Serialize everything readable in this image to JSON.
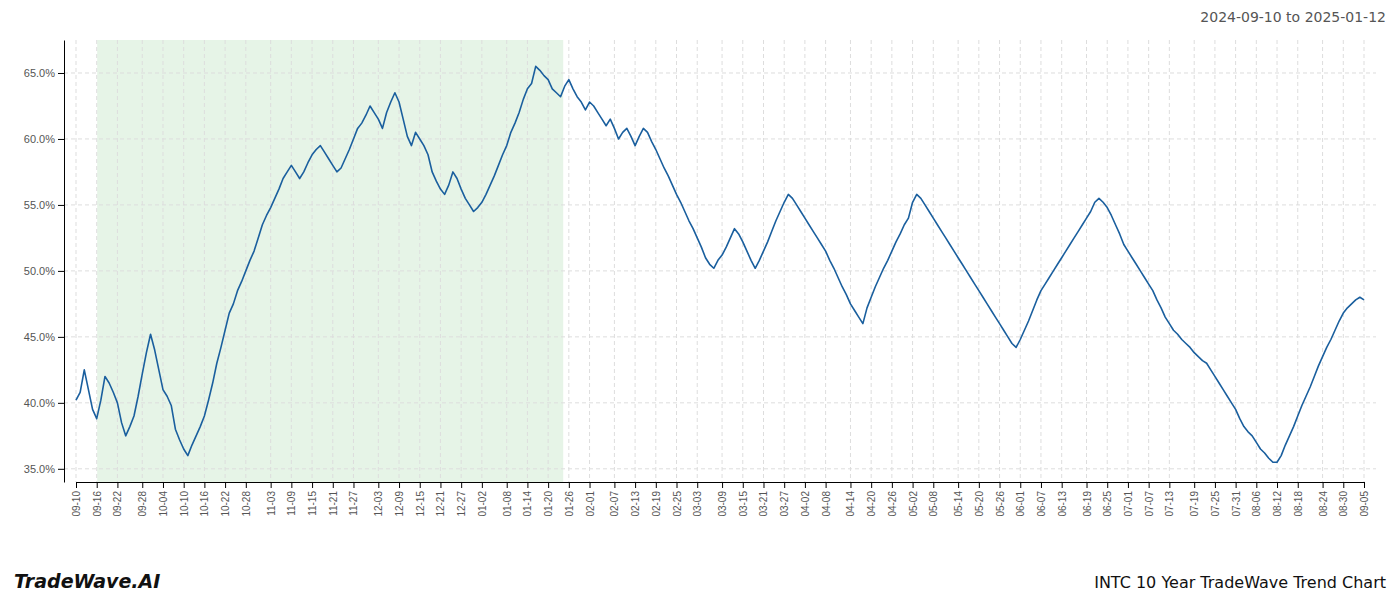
{
  "chart_data": {
    "type": "line",
    "title": "INTC 10 Year TradeWave Trend Chart",
    "subtitle": "2024-09-10 to 2025-01-12",
    "annotations": [
      "TradeWave.AI"
    ],
    "color": "#1a5f9e",
    "grid": true,
    "ylim": [
      34.0,
      67.5
    ],
    "yticks": [
      {
        "value": 35.0,
        "label": "35.0%"
      },
      {
        "value": 40.0,
        "label": "40.0%"
      },
      {
        "value": 45.0,
        "label": "45.0%"
      },
      {
        "value": 50.0,
        "label": "50.0%"
      },
      {
        "value": 55.0,
        "label": "55.0%"
      },
      {
        "value": 60.0,
        "label": "60.0%"
      },
      {
        "value": 65.0,
        "label": "65.0%"
      }
    ],
    "shade": {
      "start": "09-16",
      "end": "01-20",
      "color": "#c8e6c9"
    },
    "categories": [
      "09-10",
      null,
      null,
      null,
      null,
      "09-16",
      null,
      null,
      null,
      null,
      "09-22",
      null,
      null,
      null,
      null,
      null,
      "09-28",
      null,
      null,
      null,
      null,
      "10-04",
      null,
      null,
      null,
      null,
      "10-10",
      null,
      null,
      null,
      null,
      "10-16",
      null,
      null,
      null,
      null,
      "10-22",
      null,
      null,
      null,
      null,
      "10-28",
      null,
      null,
      null,
      null,
      null,
      "11-03",
      null,
      null,
      null,
      null,
      "11-09",
      null,
      null,
      null,
      null,
      "11-15",
      null,
      null,
      null,
      null,
      "11-21",
      null,
      null,
      null,
      null,
      "11-27",
      null,
      null,
      null,
      null,
      null,
      "12-03",
      null,
      null,
      null,
      null,
      "12-09",
      null,
      null,
      null,
      null,
      "12-15",
      null,
      null,
      null,
      null,
      "12-21",
      null,
      null,
      null,
      null,
      "12-27",
      null,
      null,
      null,
      null,
      "01-02",
      null,
      null,
      null,
      null,
      null,
      "01-08",
      null,
      null,
      null,
      null,
      "01-14",
      null,
      null,
      null,
      null,
      "01-20",
      null,
      null,
      null,
      null,
      "01-26",
      null,
      null,
      null,
      null,
      "02-01",
      null,
      null,
      null,
      null,
      null,
      "02-07",
      null,
      null,
      null,
      null,
      "02-13",
      null,
      null,
      null,
      null,
      "02-19",
      null,
      null,
      null,
      null,
      "02-25",
      null,
      null,
      null,
      null,
      "03-03",
      null,
      null,
      null,
      null,
      null,
      "03-09",
      null,
      null,
      null,
      null,
      "03-15",
      null,
      null,
      null,
      null,
      "03-21",
      null,
      null,
      null,
      null,
      "03-27",
      null,
      null,
      null,
      null,
      "04-02",
      null,
      null,
      null,
      null,
      "04-08",
      null,
      null,
      null,
      null,
      null,
      "04-14",
      null,
      null,
      null,
      null,
      "04-20",
      null,
      null,
      null,
      null,
      "04-26",
      null,
      null,
      null,
      null,
      "05-02",
      null,
      null,
      null,
      null,
      "05-08",
      null,
      null,
      null,
      null,
      null,
      "05-14",
      null,
      null,
      null,
      null,
      "05-20",
      null,
      null,
      null,
      null,
      "05-26",
      null,
      null,
      null,
      null,
      "06-01",
      null,
      null,
      null,
      null,
      "06-07",
      null,
      null,
      null,
      null,
      "06-13",
      null,
      null,
      null,
      null,
      null,
      "06-19",
      null,
      null,
      null,
      null,
      "06-25",
      null,
      null,
      null,
      null,
      "07-01",
      null,
      null,
      null,
      null,
      "07-07",
      null,
      null,
      null,
      null,
      "07-13",
      null,
      null,
      null,
      null,
      null,
      "07-19",
      null,
      null,
      null,
      null,
      "07-25",
      null,
      null,
      null,
      null,
      "07-31",
      null,
      null,
      null,
      null,
      "08-06",
      null,
      null,
      null,
      null,
      "08-12",
      null,
      null,
      null,
      null,
      "08-18",
      null,
      null,
      null,
      null,
      null,
      "08-24",
      null,
      null,
      null,
      null,
      "08-30",
      null,
      null,
      null,
      null,
      "09-05"
    ],
    "values": [
      40.2,
      40.8,
      42.5,
      41.0,
      39.5,
      38.8,
      40.2,
      42.0,
      41.5,
      40.8,
      40.0,
      38.5,
      37.5,
      38.2,
      39.0,
      40.5,
      42.2,
      43.8,
      45.2,
      44.0,
      42.5,
      41.0,
      40.5,
      39.8,
      38.0,
      37.2,
      36.5,
      36.0,
      36.8,
      37.5,
      38.2,
      39.0,
      40.2,
      41.5,
      43.0,
      44.2,
      45.5,
      46.8,
      47.5,
      48.5,
      49.2,
      50.0,
      50.8,
      51.5,
      52.5,
      53.5,
      54.2,
      54.8,
      55.5,
      56.2,
      57.0,
      57.5,
      58.0,
      57.5,
      57.0,
      57.5,
      58.2,
      58.8,
      59.2,
      59.5,
      59.0,
      58.5,
      58.0,
      57.5,
      57.8,
      58.5,
      59.2,
      60.0,
      60.8,
      61.2,
      61.8,
      62.5,
      62.0,
      61.5,
      60.8,
      62.0,
      62.8,
      63.5,
      62.8,
      61.5,
      60.2,
      59.5,
      60.5,
      60.0,
      59.5,
      58.8,
      57.5,
      56.8,
      56.2,
      55.8,
      56.5,
      57.5,
      57.0,
      56.2,
      55.5,
      55.0,
      54.5,
      54.8,
      55.2,
      55.8,
      56.5,
      57.2,
      58.0,
      58.8,
      59.5,
      60.5,
      61.2,
      62.0,
      63.0,
      63.8,
      64.2,
      65.5,
      65.2,
      64.8,
      64.5,
      63.8,
      63.5,
      63.2,
      64.0,
      64.5,
      63.8,
      63.2,
      62.8,
      62.2,
      62.8,
      62.5,
      62.0,
      61.5,
      61.0,
      61.5,
      60.8,
      60.0,
      60.5,
      60.8,
      60.2,
      59.5,
      60.2,
      60.8,
      60.5,
      59.8,
      59.2,
      58.5,
      57.8,
      57.2,
      56.5,
      55.8,
      55.2,
      54.5,
      53.8,
      53.2,
      52.5,
      51.8,
      51.0,
      50.5,
      50.2,
      50.8,
      51.2,
      51.8,
      52.5,
      53.2,
      52.8,
      52.2,
      51.5,
      50.8,
      50.2,
      50.8,
      51.5,
      52.2,
      53.0,
      53.8,
      54.5,
      55.2,
      55.8,
      55.5,
      55.0,
      54.5,
      54.0,
      53.5,
      53.0,
      52.5,
      52.0,
      51.5,
      50.8,
      50.2,
      49.5,
      48.8,
      48.2,
      47.5,
      47.0,
      46.5,
      46.0,
      47.2,
      48.0,
      48.8,
      49.5,
      50.2,
      50.8,
      51.5,
      52.2,
      52.8,
      53.5,
      54.0,
      55.2,
      55.8,
      55.5,
      55.0,
      54.5,
      54.0,
      53.5,
      53.0,
      52.5,
      52.0,
      51.5,
      51.0,
      50.5,
      50.0,
      49.5,
      49.0,
      48.5,
      48.0,
      47.5,
      47.0,
      46.5,
      46.0,
      45.5,
      45.0,
      44.5,
      44.2,
      44.8,
      45.5,
      46.2,
      47.0,
      47.8,
      48.5,
      49.0,
      49.5,
      50.0,
      50.5,
      51.0,
      51.5,
      52.0,
      52.5,
      53.0,
      53.5,
      54.0,
      54.5,
      55.2,
      55.5,
      55.2,
      54.8,
      54.2,
      53.5,
      52.8,
      52.0,
      51.5,
      51.0,
      50.5,
      50.0,
      49.5,
      49.0,
      48.5,
      47.8,
      47.2,
      46.5,
      46.0,
      45.5,
      45.2,
      44.8,
      44.5,
      44.2,
      43.8,
      43.5,
      43.2,
      43.0,
      42.5,
      42.0,
      41.5,
      41.0,
      40.5,
      40.0,
      39.5,
      38.8,
      38.2,
      37.8,
      37.5,
      37.0,
      36.5,
      36.2,
      35.8,
      35.5,
      35.5,
      36.0,
      36.8,
      37.5,
      38.2,
      39.0,
      39.8,
      40.5,
      41.2,
      42.0,
      42.8,
      43.5,
      44.2,
      44.8,
      45.5,
      46.2,
      46.8,
      47.2,
      47.5,
      47.8,
      48.0,
      47.8
    ]
  }
}
